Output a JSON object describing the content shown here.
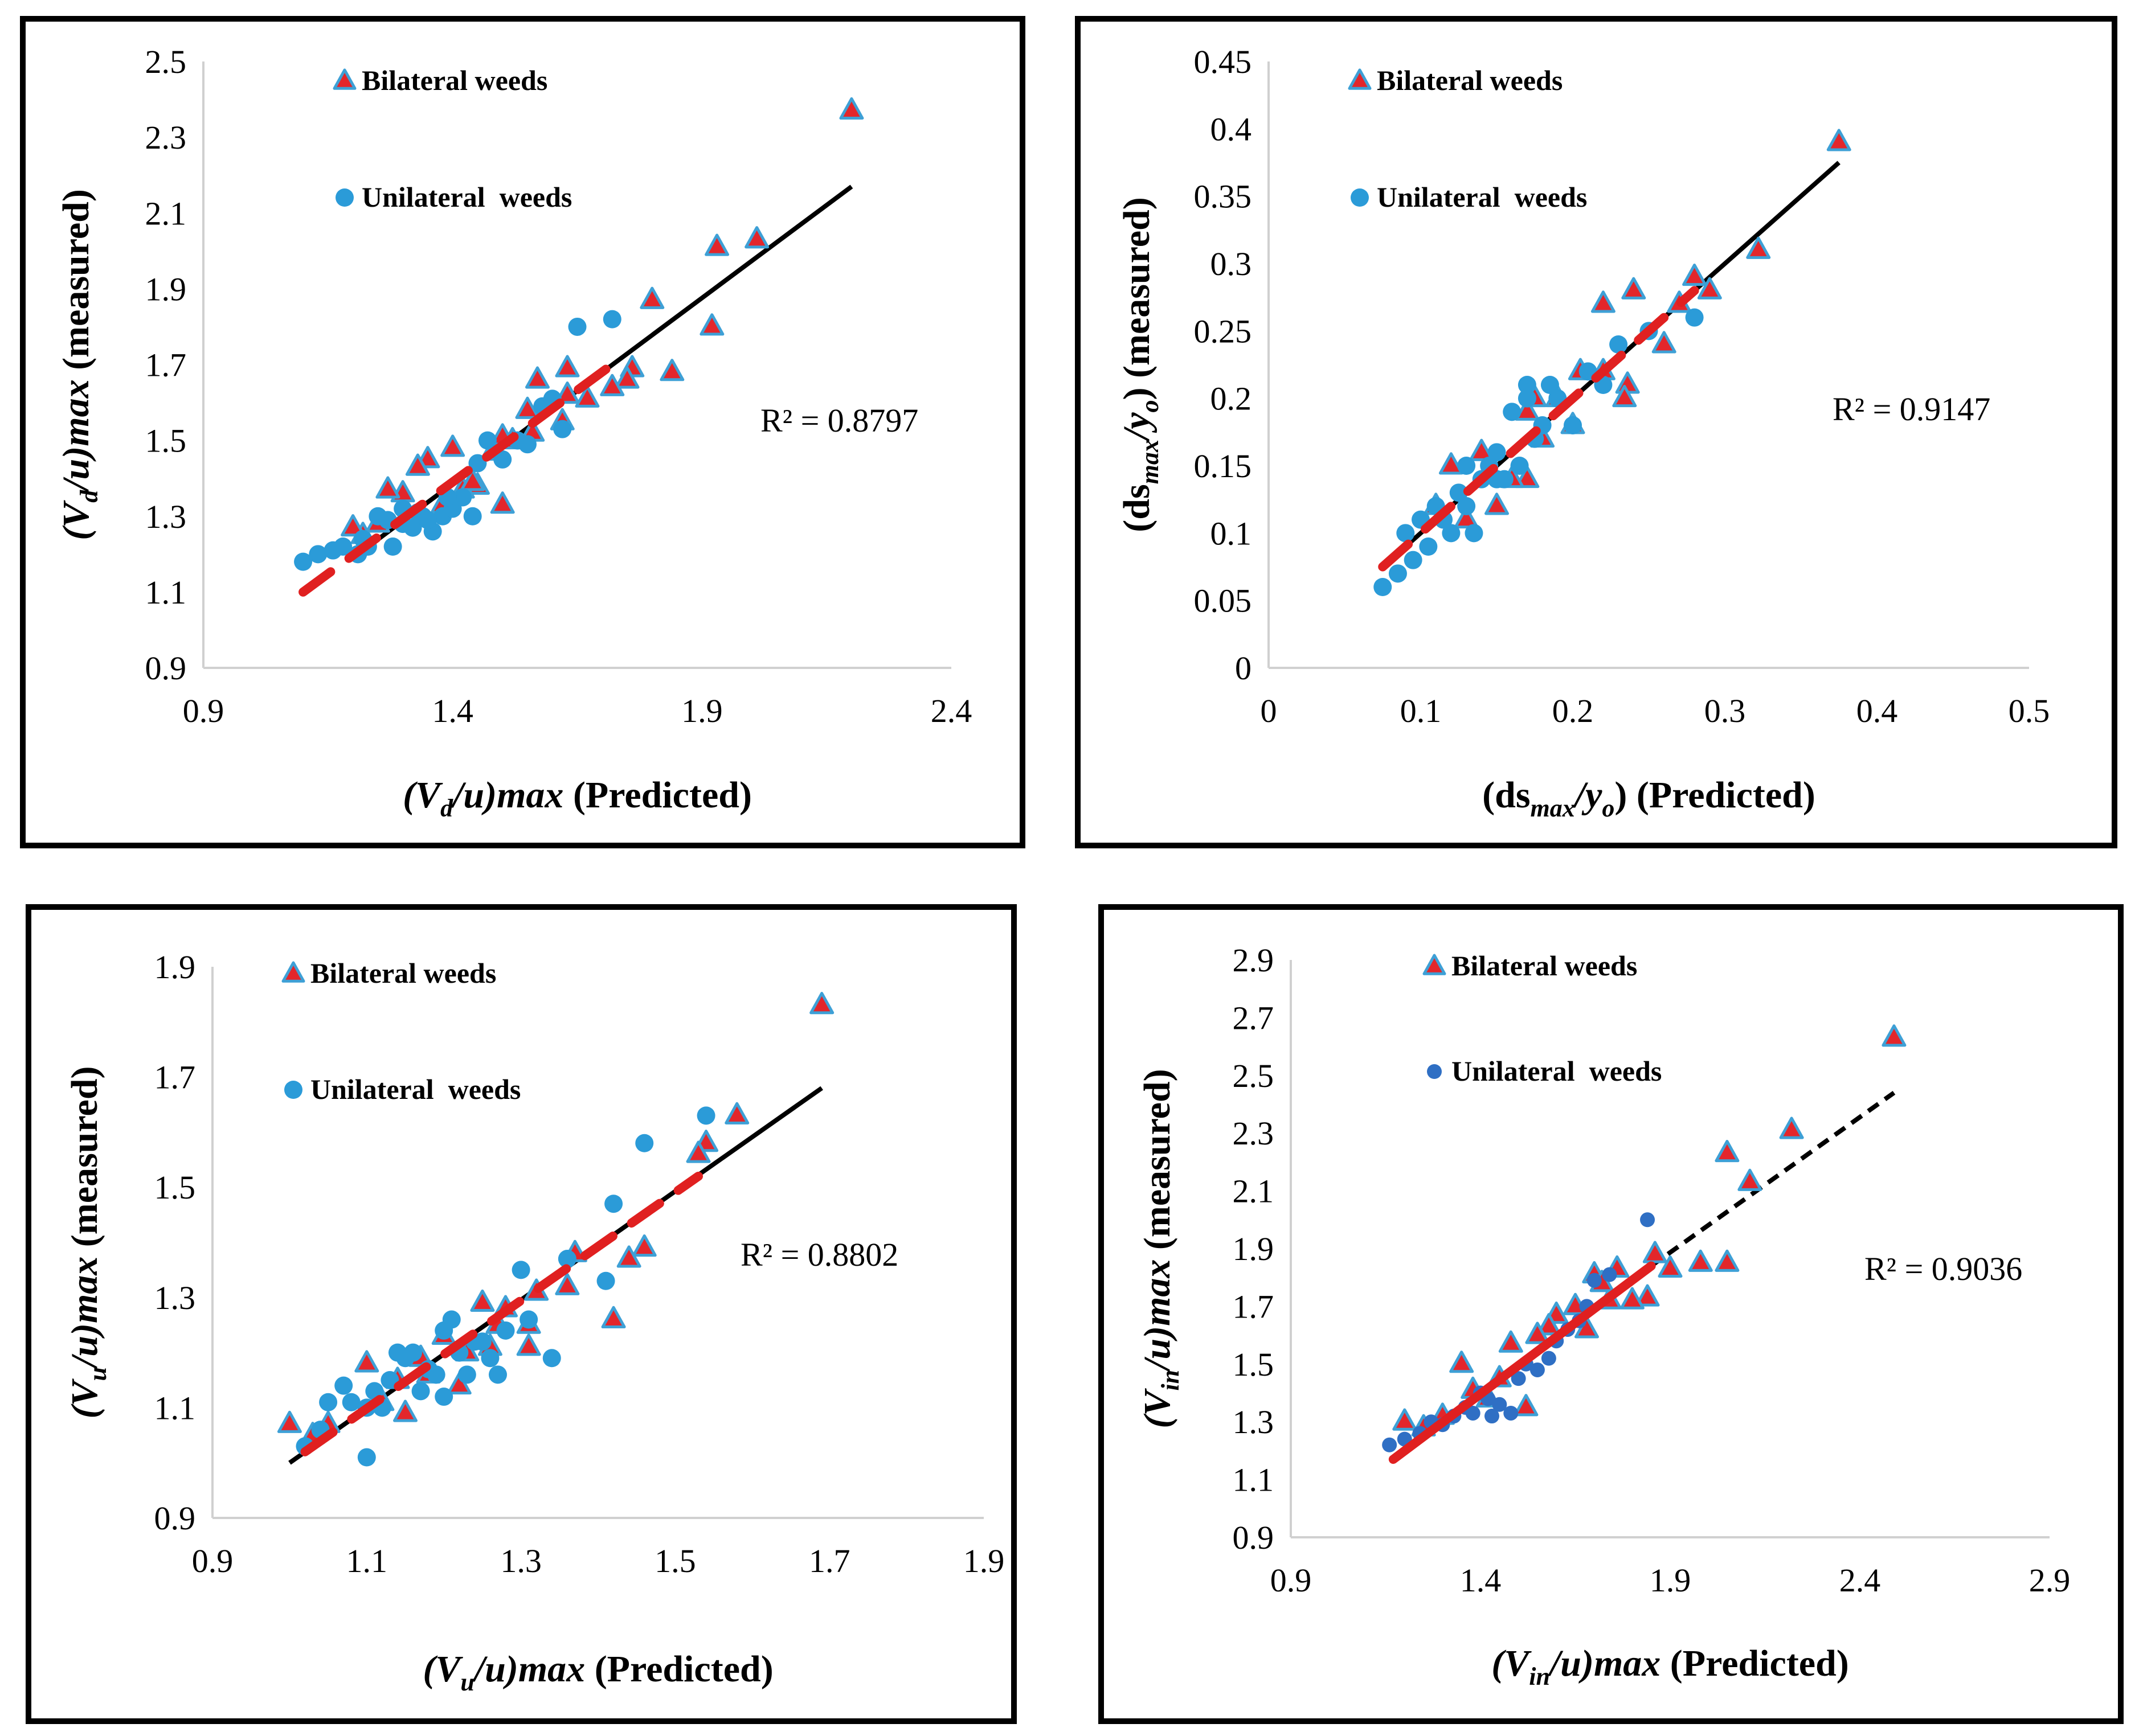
{
  "figure": {
    "legend": {
      "bilateral": "Bilateral weeds",
      "unilateral": "Unilateral  weeds"
    },
    "colors": {
      "triangle_fill": "#e3262b",
      "triangle_edge": "#3ea0d6",
      "circle": "#2b9bd8",
      "circle_dark": "#2f6fc4",
      "fit_line": "#000000",
      "red_line": "#e02020"
    }
  },
  "chart_data": [
    {
      "id": "vd",
      "type": "scatter",
      "title": "",
      "xlabel": "(Vd/u)max (Predicted)",
      "ylabel": "(Vd/u)max  (measured)",
      "xlim": [
        0.9,
        2.4
      ],
      "ylim": [
        0.9,
        2.5
      ],
      "x_ticks": [
        "0.9",
        "1.4",
        "1.9",
        "2.4"
      ],
      "y_ticks": [
        "0.9",
        "1.1",
        "1.3",
        "1.5",
        "1.7",
        "1.9",
        "2.1",
        "2.3",
        "2.5"
      ],
      "r2_label": "R² = 0.8797",
      "fit_line": {
        "x": [
          1.2,
          2.2
        ],
        "y": [
          1.19,
          2.17
        ]
      },
      "red_line": {
        "x": [
          1.1,
          1.73
        ],
        "y": [
          1.1,
          1.71
        ]
      },
      "series": [
        {
          "name": "Bilateral weeds",
          "marker": "triangle",
          "x": [
            2.2,
            1.93,
            2.01,
            1.8,
            1.92,
            1.76,
            1.84,
            1.75,
            1.72,
            1.63,
            1.63,
            1.67,
            1.57,
            1.62,
            1.55,
            1.52,
            1.48,
            1.5,
            1.45,
            1.42,
            1.4,
            1.35,
            1.33,
            1.3,
            1.27,
            1.25,
            1.22,
            1.2,
            1.38,
            1.44,
            1.5,
            1.56
          ],
          "y": [
            2.37,
            2.01,
            2.03,
            1.87,
            1.8,
            1.69,
            1.68,
            1.66,
            1.64,
            1.69,
            1.62,
            1.61,
            1.66,
            1.55,
            1.58,
            1.5,
            1.47,
            1.51,
            1.38,
            1.37,
            1.48,
            1.45,
            1.43,
            1.36,
            1.37,
            1.28,
            1.25,
            1.27,
            1.33,
            1.39,
            1.33,
            1.52
          ]
        },
        {
          "name": "Unilateral  weeds",
          "marker": "circle",
          "x": [
            1.1,
            1.13,
            1.16,
            1.18,
            1.21,
            1.23,
            1.25,
            1.28,
            1.3,
            1.32,
            1.34,
            1.36,
            1.38,
            1.4,
            1.42,
            1.44,
            1.47,
            1.5,
            1.53,
            1.55,
            1.58,
            1.6,
            1.65,
            1.72,
            1.22,
            1.27,
            1.33,
            1.39,
            1.45,
            1.62,
            1.3,
            1.35
          ],
          "y": [
            1.18,
            1.2,
            1.21,
            1.22,
            1.2,
            1.22,
            1.3,
            1.22,
            1.28,
            1.27,
            1.3,
            1.26,
            1.3,
            1.32,
            1.35,
            1.3,
            1.5,
            1.45,
            1.5,
            1.49,
            1.59,
            1.61,
            1.8,
            1.82,
            1.24,
            1.29,
            1.31,
            1.35,
            1.44,
            1.53,
            1.32,
            1.29
          ]
        }
      ]
    },
    {
      "id": "ds",
      "type": "scatter",
      "title": "",
      "xlabel": "(dsmax/yo) (Predicted)",
      "ylabel": "(dsmax/yo)  (measured)",
      "xlim": [
        0,
        0.5
      ],
      "ylim": [
        0,
        0.45
      ],
      "x_ticks": [
        "0",
        "0.1",
        "0.2",
        "0.3",
        "0.4",
        "0.5"
      ],
      "y_ticks": [
        "0",
        "0.05",
        "0.1",
        "0.15",
        "0.2",
        "0.25",
        "0.3",
        "0.35",
        "0.4",
        "0.45"
      ],
      "r2_label": "R² = 0.9147",
      "fit_line": {
        "x": [
          0.075,
          0.375
        ],
        "y": [
          0.075,
          0.375
        ]
      },
      "red_line": {
        "x": [
          0.075,
          0.28
        ],
        "y": [
          0.075,
          0.28
        ]
      },
      "series": [
        {
          "name": "Bilateral weeds",
          "marker": "triangle",
          "x": [
            0.375,
            0.322,
            0.29,
            0.28,
            0.27,
            0.26,
            0.24,
            0.236,
            0.234,
            0.22,
            0.22,
            0.205,
            0.19,
            0.18,
            0.175,
            0.17,
            0.16,
            0.15,
            0.14,
            0.13,
            0.12,
            0.11,
            0.17,
            0.2
          ],
          "y": [
            0.39,
            0.31,
            0.28,
            0.29,
            0.27,
            0.24,
            0.28,
            0.21,
            0.2,
            0.27,
            0.22,
            0.22,
            0.2,
            0.17,
            0.2,
            0.14,
            0.14,
            0.12,
            0.16,
            0.11,
            0.15,
            0.12,
            0.19,
            0.18
          ]
        },
        {
          "name": "Unilateral  weeds",
          "marker": "circle",
          "x": [
            0.075,
            0.085,
            0.09,
            0.095,
            0.1,
            0.105,
            0.11,
            0.115,
            0.12,
            0.125,
            0.13,
            0.135,
            0.14,
            0.145,
            0.15,
            0.155,
            0.16,
            0.165,
            0.17,
            0.175,
            0.18,
            0.185,
            0.19,
            0.2,
            0.21,
            0.22,
            0.23,
            0.25,
            0.28,
            0.15,
            0.13,
            0.17
          ],
          "y": [
            0.06,
            0.07,
            0.1,
            0.08,
            0.11,
            0.09,
            0.12,
            0.11,
            0.1,
            0.13,
            0.15,
            0.1,
            0.14,
            0.15,
            0.16,
            0.14,
            0.19,
            0.15,
            0.21,
            0.17,
            0.18,
            0.21,
            0.2,
            0.18,
            0.22,
            0.21,
            0.24,
            0.25,
            0.26,
            0.14,
            0.12,
            0.2
          ]
        }
      ]
    },
    {
      "id": "vu",
      "type": "scatter",
      "title": "",
      "xlabel": "(Vu/u)max (Predicted)",
      "ylabel": "(Vu/u)max  (measured)",
      "xlim": [
        0.9,
        1.9
      ],
      "ylim": [
        0.9,
        1.9
      ],
      "x_ticks": [
        "0.9",
        "1.1",
        "1.3",
        "1.5",
        "1.7",
        "1.9"
      ],
      "y_ticks": [
        "0.9",
        "1.1",
        "1.3",
        "1.5",
        "1.7",
        "1.9"
      ],
      "r2_label": "R² = 0.8802",
      "fit_line": {
        "x": [
          1.0,
          1.69
        ],
        "y": [
          1.0,
          1.68
        ]
      },
      "red_line": {
        "x": [
          1.02,
          1.53
        ],
        "y": [
          1.02,
          1.52
        ]
      },
      "series": [
        {
          "name": "Bilateral weeds",
          "marker": "triangle",
          "x": [
            1.69,
            1.58,
            1.54,
            1.53,
            1.46,
            1.44,
            1.42,
            1.37,
            1.36,
            1.32,
            1.31,
            1.31,
            1.28,
            1.27,
            1.25,
            1.23,
            1.22,
            1.2,
            1.18,
            1.15,
            1.14,
            1.12,
            1.1,
            1.05,
            1.03,
            1.0,
            1.17,
            1.26
          ],
          "y": [
            1.83,
            1.63,
            1.58,
            1.56,
            1.39,
            1.37,
            1.26,
            1.38,
            1.32,
            1.31,
            1.25,
            1.21,
            1.28,
            1.25,
            1.29,
            1.2,
            1.14,
            1.23,
            1.16,
            1.09,
            1.15,
            1.11,
            1.18,
            1.07,
            1.05,
            1.07,
            1.19,
            1.21
          ]
        },
        {
          "name": "Unilateral  weeds",
          "marker": "circle",
          "x": [
            1.02,
            1.04,
            1.05,
            1.07,
            1.08,
            1.1,
            1.11,
            1.12,
            1.13,
            1.14,
            1.15,
            1.16,
            1.17,
            1.18,
            1.19,
            1.2,
            1.21,
            1.22,
            1.23,
            1.25,
            1.26,
            1.27,
            1.28,
            1.3,
            1.31,
            1.34,
            1.36,
            1.41,
            1.42,
            1.46,
            1.54,
            1.1,
            1.2,
            1.24
          ],
          "y": [
            1.03,
            1.06,
            1.11,
            1.14,
            1.11,
            1.01,
            1.13,
            1.1,
            1.15,
            1.2,
            1.19,
            1.2,
            1.13,
            1.17,
            1.16,
            1.12,
            1.26,
            1.2,
            1.16,
            1.22,
            1.19,
            1.16,
            1.24,
            1.35,
            1.26,
            1.19,
            1.37,
            1.33,
            1.47,
            1.58,
            1.63,
            1.1,
            1.24,
            1.22
          ]
        }
      ]
    },
    {
      "id": "vin",
      "type": "scatter",
      "title": "",
      "xlabel": "(Vin/u)max (Predicted)",
      "ylabel": "(Vin/u)max  (measured)",
      "xlim": [
        0.9,
        2.9
      ],
      "ylim": [
        0.9,
        2.9
      ],
      "x_ticks": [
        "0.9",
        "1.4",
        "1.9",
        "2.4",
        "2.9"
      ],
      "y_ticks": [
        "0.9",
        "1.1",
        "1.3",
        "1.5",
        "1.7",
        "1.9",
        "2.1",
        "2.3",
        "2.5",
        "2.7",
        "2.9"
      ],
      "r2_label": "R² = 0.9036",
      "fit_line": {
        "x": [
          1.85,
          2.49
        ],
        "y": [
          1.84,
          2.44
        ],
        "dashed": true
      },
      "red_line": {
        "x": [
          1.17,
          1.85
        ],
        "y": [
          1.17,
          1.84
        ]
      },
      "series": [
        {
          "name": "Bilateral weeds",
          "marker": "triangle",
          "x": [
            2.49,
            2.22,
            2.11,
            2.05,
            2.05,
            1.98,
            1.9,
            1.86,
            1.84,
            1.8,
            1.76,
            1.74,
            1.7,
            1.68,
            1.65,
            1.6,
            1.58,
            1.52,
            1.48,
            1.45,
            1.42,
            1.38,
            1.35,
            1.3,
            1.25,
            1.2,
            1.55,
            1.72
          ],
          "y": [
            2.63,
            2.31,
            2.13,
            2.23,
            1.85,
            1.85,
            1.83,
            1.88,
            1.73,
            1.72,
            1.83,
            1.72,
            1.81,
            1.62,
            1.7,
            1.67,
            1.63,
            1.35,
            1.57,
            1.45,
            1.38,
            1.41,
            1.5,
            1.32,
            1.28,
            1.3,
            1.6,
            1.78
          ]
        },
        {
          "name": "Unilateral  weeds",
          "marker": "circle-dark",
          "x": [
            1.16,
            1.2,
            1.24,
            1.27,
            1.3,
            1.33,
            1.36,
            1.38,
            1.4,
            1.43,
            1.45,
            1.48,
            1.5,
            1.52,
            1.55,
            1.58,
            1.6,
            1.63,
            1.66,
            1.7,
            1.74,
            1.84,
            1.68,
            1.42
          ],
          "y": [
            1.22,
            1.24,
            1.26,
            1.3,
            1.29,
            1.32,
            1.35,
            1.33,
            1.4,
            1.32,
            1.36,
            1.33,
            1.45,
            1.5,
            1.48,
            1.52,
            1.58,
            1.62,
            1.65,
            1.79,
            1.81,
            2.0,
            1.7,
            1.38
          ]
        }
      ]
    }
  ]
}
